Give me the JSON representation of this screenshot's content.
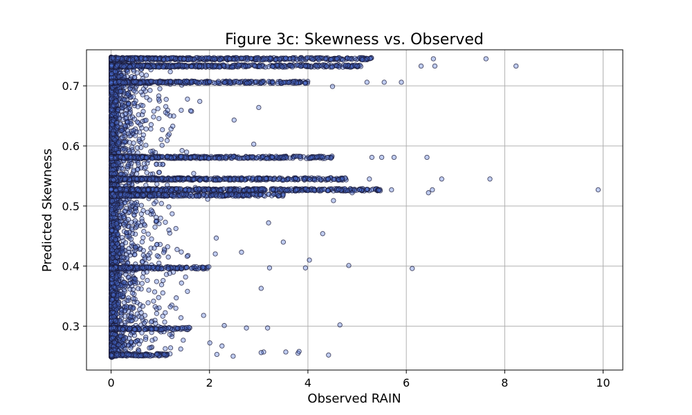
{
  "chart_data": {
    "type": "scatter",
    "title": "Figure 3c: Skewness vs. Observed",
    "xlabel": "Observed RAIN",
    "ylabel": "Predicted Skewness",
    "xlim": [
      -0.5,
      10.4
    ],
    "ylim": [
      0.227,
      0.76
    ],
    "xticks": [
      0,
      2,
      4,
      6,
      8,
      10
    ],
    "yticks": [
      0.3,
      0.4,
      0.5,
      0.6,
      0.7
    ],
    "xtick_labels": [
      "0",
      "2",
      "4",
      "6",
      "8",
      "10"
    ],
    "ytick_labels": [
      "0.3",
      "0.4",
      "0.5",
      "0.6",
      "0.7"
    ],
    "grid": true,
    "colors": {
      "marker_fill": "#4a6fd6",
      "marker_edge": "#1a1a3a",
      "alpha": 0.35
    },
    "bands": [
      {
        "y": 0.745,
        "xmax": 5.3
      },
      {
        "y": 0.733,
        "xmax": 5.1
      },
      {
        "y": 0.706,
        "xmax": 4.0
      },
      {
        "y": 0.581,
        "xmax": 4.5
      },
      {
        "y": 0.545,
        "xmax": 4.8
      },
      {
        "y": 0.527,
        "xmax": 5.5
      },
      {
        "y": 0.518,
        "xmax": 3.5
      },
      {
        "y": 0.397,
        "xmax": 2.0
      },
      {
        "y": 0.296,
        "xmax": 1.6
      },
      {
        "y": 0.252,
        "xmax": 1.2
      }
    ],
    "outliers": [
      {
        "x": 7.62,
        "y": 0.745
      },
      {
        "x": 8.23,
        "y": 0.733
      },
      {
        "x": 6.55,
        "y": 0.745
      },
      {
        "x": 6.58,
        "y": 0.733
      },
      {
        "x": 6.3,
        "y": 0.733
      },
      {
        "x": 5.9,
        "y": 0.706
      },
      {
        "x": 5.55,
        "y": 0.706
      },
      {
        "x": 6.42,
        "y": 0.581
      },
      {
        "x": 5.75,
        "y": 0.581
      },
      {
        "x": 5.5,
        "y": 0.581
      },
      {
        "x": 5.3,
        "y": 0.581
      },
      {
        "x": 6.72,
        "y": 0.545
      },
      {
        "x": 7.7,
        "y": 0.545
      },
      {
        "x": 9.9,
        "y": 0.527
      },
      {
        "x": 6.53,
        "y": 0.527
      },
      {
        "x": 6.45,
        "y": 0.522
      },
      {
        "x": 5.7,
        "y": 0.527
      },
      {
        "x": 6.12,
        "y": 0.396
      },
      {
        "x": 4.83,
        "y": 0.401
      },
      {
        "x": 4.65,
        "y": 0.302
      },
      {
        "x": 4.42,
        "y": 0.252
      },
      {
        "x": 4.3,
        "y": 0.454
      },
      {
        "x": 3.5,
        "y": 0.44
      },
      {
        "x": 4.03,
        "y": 0.41
      },
      {
        "x": 3.95,
        "y": 0.397
      },
      {
        "x": 3.8,
        "y": 0.255
      },
      {
        "x": 3.82,
        "y": 0.258
      },
      {
        "x": 3.55,
        "y": 0.257
      },
      {
        "x": 3.18,
        "y": 0.297
      },
      {
        "x": 3.1,
        "y": 0.257
      },
      {
        "x": 3.05,
        "y": 0.256
      },
      {
        "x": 3.22,
        "y": 0.397
      },
      {
        "x": 3.05,
        "y": 0.363
      },
      {
        "x": 3.2,
        "y": 0.472
      },
      {
        "x": 4.52,
        "y": 0.509
      },
      {
        "x": 2.9,
        "y": 0.603
      },
      {
        "x": 3.0,
        "y": 0.664
      },
      {
        "x": 2.5,
        "y": 0.643
      },
      {
        "x": 4.5,
        "y": 0.699
      },
      {
        "x": 5.2,
        "y": 0.706
      },
      {
        "x": 2.65,
        "y": 0.423
      },
      {
        "x": 2.3,
        "y": 0.301
      },
      {
        "x": 2.75,
        "y": 0.297
      },
      {
        "x": 2.48,
        "y": 0.25
      },
      {
        "x": 2.15,
        "y": 0.253
      },
      {
        "x": 5.25,
        "y": 0.545
      },
      {
        "x": 5.05,
        "y": 0.527
      },
      {
        "x": 4.9,
        "y": 0.522
      },
      {
        "x": 5.0,
        "y": 0.733
      },
      {
        "x": 4.85,
        "y": 0.745
      }
    ]
  }
}
